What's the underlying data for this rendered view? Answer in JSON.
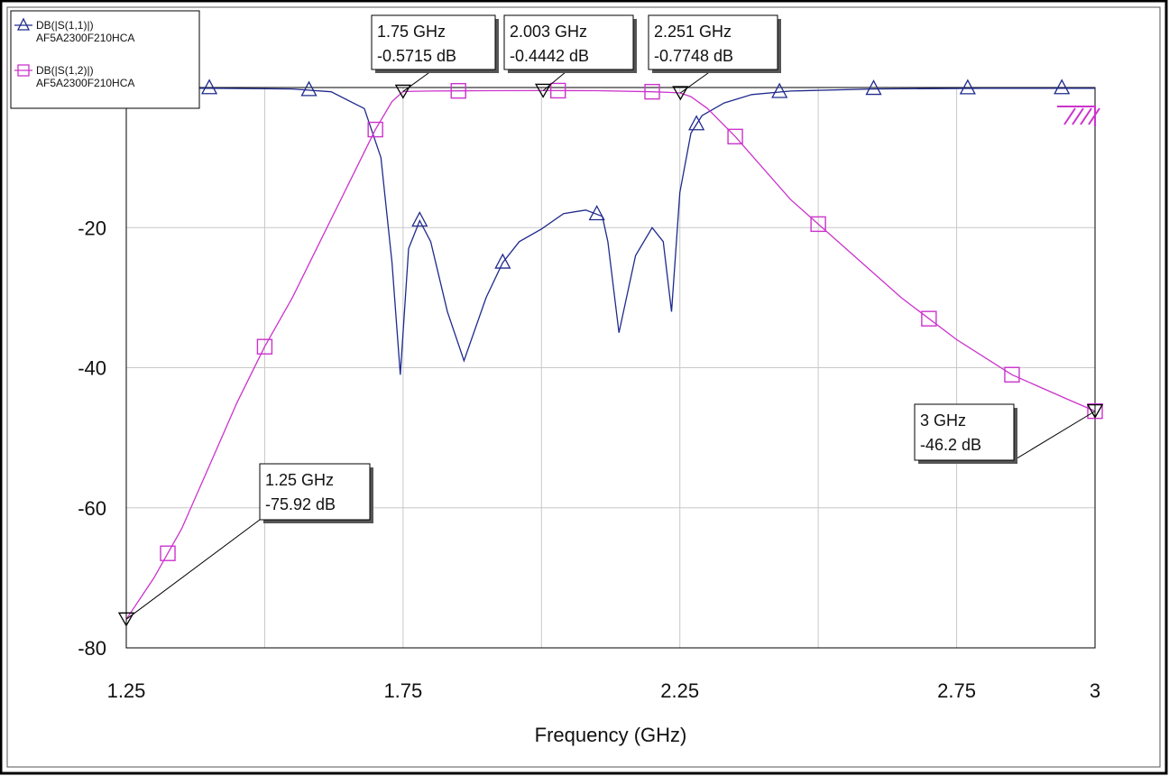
{
  "chart_data": {
    "type": "line",
    "title": "",
    "xlabel": "Frequency (GHz)",
    "ylabel": "",
    "xlim": [
      1.25,
      3
    ],
    "ylim": [
      -80,
      0
    ],
    "grid": true,
    "legend_position": "top-left",
    "x_ticks": [
      1.25,
      1.75,
      2.25,
      2.75,
      3
    ],
    "x_tick_labels": [
      "1.25",
      "1.75",
      "2.25",
      "2.75",
      "3"
    ],
    "y_ticks": [
      -20,
      -40,
      -60,
      -80
    ],
    "y_tick_labels": [
      "-20",
      "-40",
      "-60",
      "-80"
    ],
    "series": [
      {
        "name": "DB(|S(1,1)|)",
        "subname": "AF5A2300F210HCA",
        "color": "#1f2a8c",
        "marker": "triangle-up",
        "x": [
          1.25,
          1.4,
          1.55,
          1.62,
          1.68,
          1.71,
          1.73,
          1.745,
          1.76,
          1.78,
          1.8,
          1.83,
          1.86,
          1.9,
          1.93,
          1.96,
          2.0,
          2.04,
          2.08,
          2.11,
          2.12,
          2.14,
          2.17,
          2.2,
          2.22,
          2.235,
          2.25,
          2.27,
          2.29,
          2.33,
          2.38,
          2.45,
          2.6,
          2.8,
          3.0
        ],
        "values": [
          -0.1,
          -0.1,
          -0.2,
          -0.6,
          -3,
          -10,
          -25,
          -41,
          -23,
          -19,
          -22,
          -32,
          -39,
          -30,
          -25,
          -22,
          -20.2,
          -18,
          -17.5,
          -18.4,
          -22,
          -35,
          -24,
          -20,
          -22,
          -32,
          -15,
          -6.5,
          -4,
          -2.2,
          -1,
          -0.5,
          -0.2,
          -0.1,
          -0.1
        ],
        "marker_x": [
          1.25,
          1.4,
          1.58,
          1.78,
          1.93,
          2.1,
          2.28,
          2.43,
          2.6,
          2.77,
          2.94
        ]
      },
      {
        "name": "DB(|S(1,2)|)",
        "subname": "AF5A2300F210HCA",
        "color": "#cc33cc",
        "marker": "square",
        "x": [
          1.25,
          1.3,
          1.35,
          1.4,
          1.45,
          1.5,
          1.55,
          1.6,
          1.65,
          1.7,
          1.73,
          1.75,
          1.8,
          1.9,
          2.0,
          2.1,
          2.2,
          2.23,
          2.25,
          2.27,
          2.3,
          2.35,
          2.45,
          2.55,
          2.65,
          2.75,
          2.85,
          2.95,
          3.0
        ],
        "values": [
          -75.92,
          -70,
          -63,
          -54,
          -45,
          -37,
          -30,
          -22,
          -14,
          -6,
          -2,
          -0.57,
          -0.5,
          -0.45,
          -0.44,
          -0.45,
          -0.6,
          -0.7,
          -0.77,
          -1.3,
          -3,
          -7,
          -16,
          -23,
          -30,
          -36,
          -41,
          -44.5,
          -46.2
        ],
        "marker_x": [
          1.325,
          1.5,
          1.7,
          1.85,
          2.03,
          2.2,
          2.35,
          2.5,
          2.7,
          2.85,
          3.0
        ]
      }
    ],
    "markers": [
      {
        "label": "1.75 GHz",
        "value": "-0.5715 dB",
        "x": 1.75,
        "y": -0.5715
      },
      {
        "label": "2.003 GHz",
        "value": "-0.4442 dB",
        "x": 2.003,
        "y": -0.4442
      },
      {
        "label": "2.251 GHz",
        "value": "-0.7748 dB",
        "x": 2.251,
        "y": -0.7748
      },
      {
        "label": "1.25 GHz",
        "value": "-75.92 dB",
        "x": 1.25,
        "y": -75.92
      },
      {
        "label": "3 GHz",
        "value": "-46.2 dB",
        "x": 3.0,
        "y": -46.2
      }
    ]
  }
}
